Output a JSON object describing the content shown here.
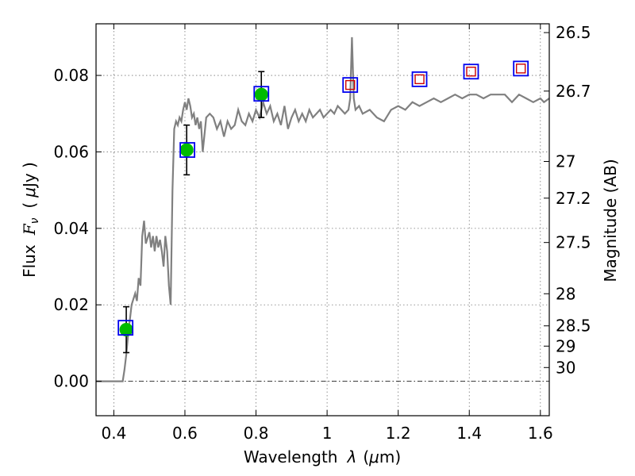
{
  "chart_data": {
    "type": "scatter",
    "xlabel_text": "Wavelength",
    "xlabel_symbol": "λ",
    "xlabel_unit_open": "(",
    "xlabel_unit_mu": "μ",
    "xlabel_unit_rest": "m)",
    "ylabel_text": "Flux",
    "ylabel_symbol_base": "F",
    "ylabel_symbol_sub": "ν",
    "ylabel_unit_open": "(",
    "ylabel_unit_mu": "μ",
    "ylabel_unit_rest": "Jy )",
    "y2label": "Magnitude (AB)",
    "xlim": [
      0.35,
      1.625
    ],
    "ylim": [
      -0.009,
      0.0935
    ],
    "x_ticks": [
      0.4,
      0.6,
      0.8,
      1.0,
      1.2,
      1.4,
      1.6
    ],
    "x_tick_labels": [
      "0.4",
      "0.6",
      "0.8",
      "1",
      "1.2",
      "1.4",
      "1.6"
    ],
    "y_ticks": [
      0.0,
      0.02,
      0.04,
      0.06,
      0.08
    ],
    "y_tick_labels": [
      "0.00",
      "0.02",
      "0.04",
      "0.06",
      "0.08"
    ],
    "y2_tick_labels": [
      "26.5",
      "26.7",
      "27",
      "27.2",
      "27.5",
      "28",
      "28.5",
      "29",
      "30"
    ],
    "y2_tick_flux": [
      0.0912,
      0.0759,
      0.0575,
      0.0479,
      0.0363,
      0.0229,
      0.0145,
      0.0092,
      0.0036
    ],
    "grid": true,
    "colors": {
      "model_line": "#808080",
      "photometry_fill": "#00bb00",
      "observed_box": "#0000ee",
      "model_box": "#cc0000",
      "errorbar": "#000000",
      "zero_line": "#000000"
    },
    "series": [
      {
        "kind": "line",
        "x": [
          0.35,
          0.36,
          0.38,
          0.4,
          0.41,
          0.42,
          0.425,
          0.43,
          0.435,
          0.44,
          0.45,
          0.46,
          0.465,
          0.47,
          0.475,
          0.48,
          0.485,
          0.49,
          0.5,
          0.505,
          0.51,
          0.515,
          0.52,
          0.525,
          0.53,
          0.535,
          0.54,
          0.545,
          0.55,
          0.555,
          0.56,
          0.565,
          0.57,
          0.575,
          0.58,
          0.585,
          0.59,
          0.595,
          0.6,
          0.605,
          0.61,
          0.615,
          0.62,
          0.625,
          0.63,
          0.635,
          0.64,
          0.645,
          0.65,
          0.66,
          0.67,
          0.68,
          0.69,
          0.7,
          0.71,
          0.72,
          0.73,
          0.74,
          0.75,
          0.76,
          0.77,
          0.78,
          0.79,
          0.8,
          0.81,
          0.82,
          0.83,
          0.84,
          0.85,
          0.86,
          0.87,
          0.88,
          0.89,
          0.9,
          0.91,
          0.92,
          0.93,
          0.94,
          0.95,
          0.96,
          0.97,
          0.98,
          0.99,
          1.0,
          1.01,
          1.02,
          1.03,
          1.04,
          1.05,
          1.06,
          1.065,
          1.07,
          1.075,
          1.08,
          1.09,
          1.1,
          1.12,
          1.14,
          1.16,
          1.18,
          1.2,
          1.22,
          1.24,
          1.26,
          1.28,
          1.3,
          1.32,
          1.34,
          1.36,
          1.38,
          1.4,
          1.42,
          1.44,
          1.46,
          1.48,
          1.5,
          1.52,
          1.54,
          1.56,
          1.58,
          1.6,
          1.61,
          1.625
        ],
        "y": [
          0.0,
          0.0,
          0.0,
          0.0,
          0.0,
          0.0,
          0.0,
          0.003,
          0.007,
          0.012,
          0.02,
          0.023,
          0.021,
          0.027,
          0.025,
          0.038,
          0.042,
          0.036,
          0.039,
          0.035,
          0.038,
          0.034,
          0.038,
          0.035,
          0.037,
          0.034,
          0.03,
          0.038,
          0.034,
          0.025,
          0.02,
          0.05,
          0.066,
          0.068,
          0.067,
          0.069,
          0.068,
          0.071,
          0.073,
          0.071,
          0.074,
          0.072,
          0.069,
          0.07,
          0.067,
          0.069,
          0.066,
          0.068,
          0.06,
          0.069,
          0.07,
          0.069,
          0.066,
          0.068,
          0.064,
          0.068,
          0.066,
          0.067,
          0.071,
          0.068,
          0.067,
          0.07,
          0.068,
          0.071,
          0.069,
          0.073,
          0.07,
          0.072,
          0.068,
          0.07,
          0.067,
          0.072,
          0.066,
          0.069,
          0.071,
          0.068,
          0.07,
          0.068,
          0.071,
          0.069,
          0.07,
          0.071,
          0.069,
          0.07,
          0.071,
          0.07,
          0.072,
          0.071,
          0.07,
          0.071,
          0.074,
          0.09,
          0.074,
          0.071,
          0.072,
          0.07,
          0.071,
          0.069,
          0.068,
          0.071,
          0.072,
          0.071,
          0.073,
          0.072,
          0.073,
          0.074,
          0.073,
          0.074,
          0.075,
          0.074,
          0.075,
          0.075,
          0.074,
          0.075,
          0.075,
          0.075,
          0.073,
          0.075,
          0.074,
          0.073,
          0.074,
          0.073,
          0.074
        ]
      },
      {
        "kind": "photometry",
        "x": [
          0.435,
          0.605,
          0.815
        ],
        "y": [
          0.0135,
          0.0605,
          0.075
        ],
        "err": [
          0.006,
          0.0065,
          0.006
        ]
      },
      {
        "kind": "observed_box",
        "x": [
          0.433,
          0.607,
          0.815,
          1.065,
          1.26,
          1.405,
          1.545
        ],
        "y": [
          0.014,
          0.0605,
          0.0752,
          0.0775,
          0.079,
          0.081,
          0.0818
        ]
      },
      {
        "kind": "model_box",
        "x": [
          1.065,
          1.26,
          1.405,
          1.545
        ],
        "y": [
          0.0775,
          0.079,
          0.081,
          0.0818
        ]
      }
    ]
  }
}
